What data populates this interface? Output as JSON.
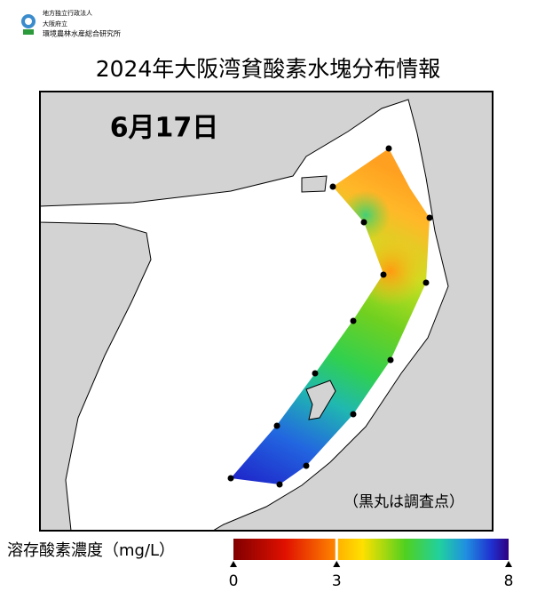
{
  "header": {
    "org_lines": [
      "地方独立行政法人",
      "大阪府立",
      "環境農林水産総合研究所"
    ],
    "title": "2024年大阪湾貧酸素水塊分布情報"
  },
  "map": {
    "date": "6月17日",
    "note": "（黒丸は調査点）"
  },
  "legend": {
    "label": "溶存酸素濃度（mg/L）",
    "lim": [
      0,
      8
    ],
    "ticks": [
      0,
      3,
      8
    ]
  }
}
